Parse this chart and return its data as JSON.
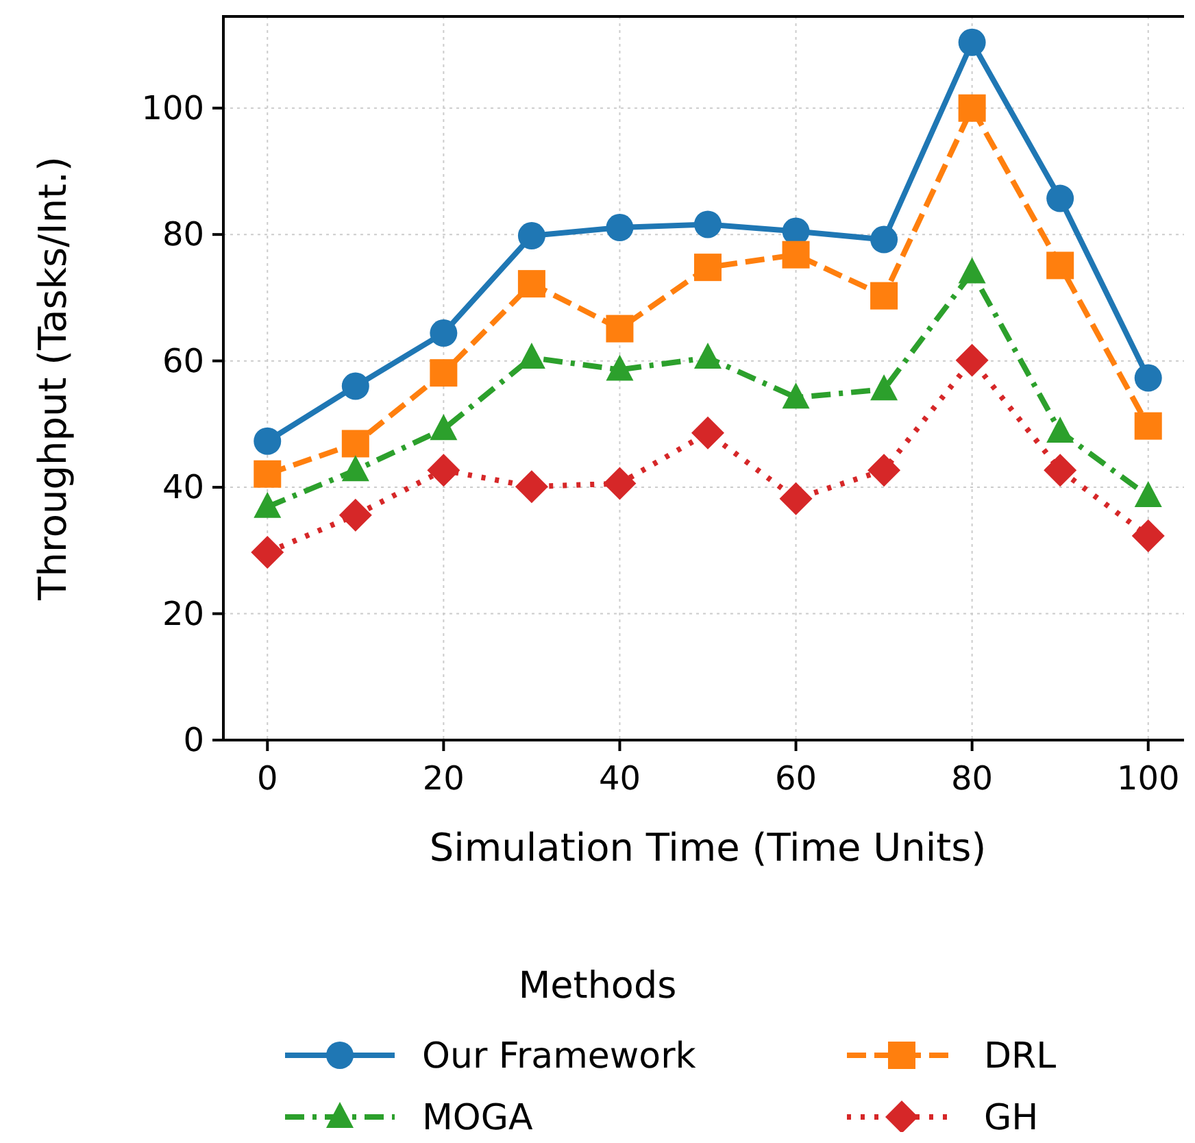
{
  "chart_data": {
    "type": "line",
    "xlabel": "Simulation Time (Time Units)",
    "ylabel": "Throughput (Tasks/Int.)",
    "legend_title": "Methods",
    "legend": "bottom",
    "grid": true,
    "x": [
      0,
      10,
      20,
      30,
      40,
      50,
      60,
      70,
      80,
      90,
      100
    ],
    "xlim": [
      -5,
      105
    ],
    "xticks": [
      0,
      20,
      40,
      60,
      80,
      100
    ],
    "ylim": [
      0,
      114.5
    ],
    "yticks": [
      0,
      20,
      40,
      60,
      80,
      100
    ],
    "series": [
      {
        "name": "Our Framework",
        "color": "#1f77b4",
        "marker": "circle",
        "line_style": "solid",
        "values": [
          47.3,
          56,
          64.4,
          79.8,
          81.1,
          81.6,
          80.5,
          79.2,
          110.4,
          85.7,
          57.3
        ]
      },
      {
        "name": "DRL",
        "color": "#ff7f0e",
        "marker": "square",
        "line_style": "dashed",
        "values": [
          42.1,
          46.9,
          58.1,
          72.2,
          65.1,
          74.8,
          76.8,
          70.3,
          100,
          75.1,
          49.7
        ]
      },
      {
        "name": "MOGA",
        "color": "#2ca02c",
        "marker": "triangle",
        "line_style": "dashdot",
        "values": [
          36.9,
          42.7,
          49.2,
          60.5,
          58.6,
          60.5,
          54.2,
          55.5,
          74,
          48.8,
          38.6
        ]
      },
      {
        "name": "GH",
        "color": "#d62728",
        "marker": "diamond",
        "line_style": "dotted",
        "values": [
          29.7,
          35.6,
          42.7,
          40.1,
          40.6,
          48.6,
          38.2,
          42.7,
          60.1,
          42.7,
          32.3
        ]
      }
    ]
  }
}
